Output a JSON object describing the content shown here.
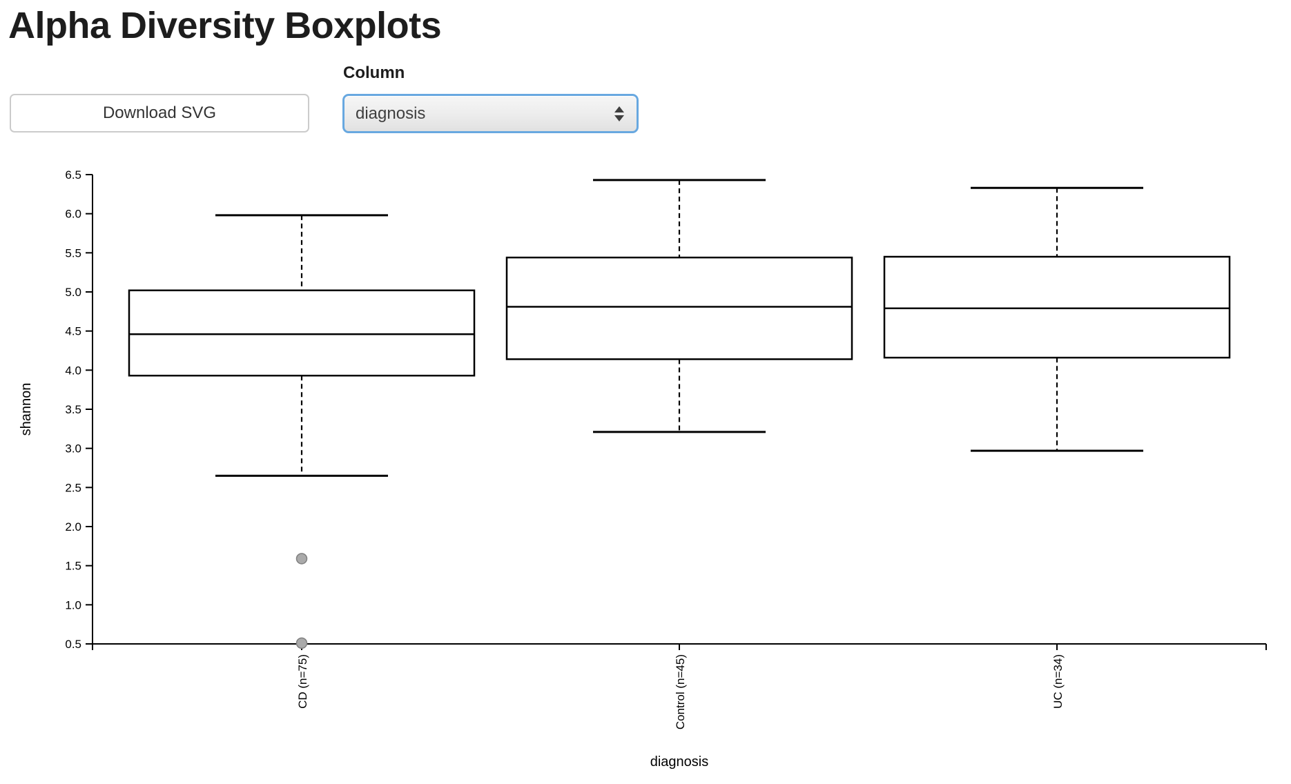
{
  "page": {
    "title": "Alpha Diversity Boxplots"
  },
  "controls": {
    "download_button_label": "Download SVG",
    "column_label": "Column",
    "column_select_value": "diagnosis"
  },
  "icons": {
    "select_arrows": "up-down-triangles"
  },
  "accent_colors": {
    "select_focus_border": "#68a8e0"
  },
  "chart_data": {
    "type": "boxplot",
    "title": "",
    "xlabel": "diagnosis",
    "ylabel": "shannon",
    "ylim": [
      0.5,
      6.5
    ],
    "yticks": [
      0.5,
      1.0,
      1.5,
      2.0,
      2.5,
      3.0,
      3.5,
      4.0,
      4.5,
      5.0,
      5.5,
      6.0,
      6.5
    ],
    "grid": false,
    "legend": false,
    "categories": [
      "CD (n=75)",
      "Control (n=45)",
      "UC (n=34)"
    ],
    "series": [
      {
        "name": "CD (n=75)",
        "whisker_low": 2.65,
        "q1": 3.93,
        "median": 4.46,
        "q3": 5.02,
        "whisker_high": 5.98,
        "outliers": [
          1.59,
          0.51
        ]
      },
      {
        "name": "Control (n=45)",
        "whisker_low": 3.21,
        "q1": 4.14,
        "median": 4.81,
        "q3": 5.44,
        "whisker_high": 6.43,
        "outliers": []
      },
      {
        "name": "UC (n=34)",
        "whisker_low": 2.97,
        "q1": 4.16,
        "median": 4.79,
        "q3": 5.45,
        "whisker_high": 6.33,
        "outliers": []
      }
    ],
    "colors": {
      "box_fill": "#ffffff",
      "stroke": "#000000",
      "outlier_fill": "#aaaaaa",
      "outlier_stroke": "#808080",
      "text": "#000000"
    }
  }
}
